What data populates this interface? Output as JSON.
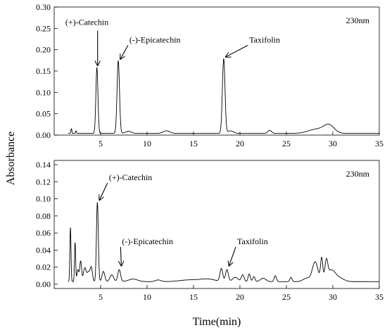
{
  "chart_data": {
    "type": "line",
    "xlabel": "Time(min)",
    "ylabel": "Absorbance",
    "panels": [
      {
        "wavelength_label": "230nm",
        "xlim": [
          0,
          35
        ],
        "ylim": [
          0,
          0.3
        ],
        "x_ticks": [
          5,
          10,
          15,
          20,
          25,
          30,
          35
        ],
        "y_ticks": [
          0.0,
          0.05,
          0.1,
          0.15,
          0.2,
          0.25,
          0.3
        ],
        "y_tick_labels": [
          "0.00",
          "0.05",
          "0.10",
          "0.15",
          "0.20",
          "0.25",
          "0.30"
        ],
        "baseline": 0.004,
        "peaks": [
          {
            "x": 1.85,
            "y": 0.011,
            "w": 0.05
          },
          {
            "x": 2.35,
            "y": 0.006,
            "w": 0.05
          },
          {
            "x": 4.6,
            "y": 0.154,
            "w": 0.11
          },
          {
            "x": 6.9,
            "y": 0.17,
            "w": 0.13
          },
          {
            "x": 8.0,
            "y": 0.005,
            "w": 0.3
          },
          {
            "x": 12.1,
            "y": 0.006,
            "w": 0.35
          },
          {
            "x": 18.25,
            "y": 0.175,
            "w": 0.14
          },
          {
            "x": 19.0,
            "y": 0.006,
            "w": 0.3
          },
          {
            "x": 23.2,
            "y": 0.007,
            "w": 0.2
          },
          {
            "x": 28.3,
            "y": 0.01,
            "w": 0.9
          },
          {
            "x": 29.6,
            "y": 0.018,
            "w": 0.55
          }
        ],
        "annotations": [
          {
            "text": "(+)-Catechin",
            "text_x": 1.2,
            "text_y": 0.258,
            "peak_x": 4.6,
            "peak_y": 0.16,
            "arrow": "down"
          },
          {
            "text": "(-)-Epicatechin",
            "text_x": 8.1,
            "text_y": 0.217,
            "peak_x": 6.9,
            "peak_y": 0.175,
            "arrow": "diag"
          },
          {
            "text": "Taxifolin",
            "text_x": 21.0,
            "text_y": 0.217,
            "peak_x": 18.25,
            "peak_y": 0.18,
            "arrow": "diag"
          }
        ]
      },
      {
        "wavelength_label": "230nm",
        "xlim": [
          0,
          35
        ],
        "ylim": [
          -0.005,
          0.145
        ],
        "x_ticks": [
          5,
          10,
          15,
          20,
          25,
          30,
          35
        ],
        "y_ticks": [
          0.0,
          0.02,
          0.04,
          0.06,
          0.08,
          0.1,
          0.12,
          0.14
        ],
        "y_tick_labels": [
          "0.00",
          "0.02",
          "0.04",
          "0.06",
          "0.08",
          "0.10",
          "0.12",
          "0.14"
        ],
        "baseline": 0.003,
        "peaks": [
          {
            "x": 1.75,
            "y": 0.064,
            "w": 0.06
          },
          {
            "x": 2.25,
            "y": 0.046,
            "w": 0.06
          },
          {
            "x": 2.55,
            "y": 0.014,
            "w": 0.1
          },
          {
            "x": 2.85,
            "y": 0.024,
            "w": 0.1
          },
          {
            "x": 3.3,
            "y": 0.016,
            "w": 0.15
          },
          {
            "x": 3.7,
            "y": 0.011,
            "w": 0.15
          },
          {
            "x": 4.0,
            "y": 0.016,
            "w": 0.12
          },
          {
            "x": 4.65,
            "y": 0.093,
            "w": 0.1
          },
          {
            "x": 5.3,
            "y": 0.012,
            "w": 0.15
          },
          {
            "x": 6.2,
            "y": 0.008,
            "w": 0.2
          },
          {
            "x": 7.0,
            "y": 0.014,
            "w": 0.15
          },
          {
            "x": 8.5,
            "y": 0.003,
            "w": 0.5
          },
          {
            "x": 11.2,
            "y": 0.002,
            "w": 0.3
          },
          {
            "x": 14.5,
            "y": 0.002,
            "w": 1.0
          },
          {
            "x": 16.5,
            "y": 0.003,
            "w": 0.8
          },
          {
            "x": 18.0,
            "y": 0.015,
            "w": 0.15
          },
          {
            "x": 18.6,
            "y": 0.014,
            "w": 0.15
          },
          {
            "x": 19.5,
            "y": 0.005,
            "w": 0.3
          },
          {
            "x": 20.3,
            "y": 0.008,
            "w": 0.15
          },
          {
            "x": 21.0,
            "y": 0.009,
            "w": 0.12
          },
          {
            "x": 21.5,
            "y": 0.006,
            "w": 0.12
          },
          {
            "x": 22.5,
            "y": 0.004,
            "w": 0.3
          },
          {
            "x": 23.8,
            "y": 0.007,
            "w": 0.12
          },
          {
            "x": 25.5,
            "y": 0.005,
            "w": 0.12
          },
          {
            "x": 27.2,
            "y": 0.004,
            "w": 0.4
          },
          {
            "x": 28.1,
            "y": 0.023,
            "w": 0.3
          },
          {
            "x": 28.8,
            "y": 0.026,
            "w": 0.12
          },
          {
            "x": 29.3,
            "y": 0.02,
            "w": 0.15
          },
          {
            "x": 29.8,
            "y": 0.013,
            "w": 0.45
          },
          {
            "x": 30.7,
            "y": 0.004,
            "w": 0.5
          }
        ],
        "annotations": [
          {
            "text": "(+)-Catechin",
            "text_x": 5.9,
            "text_y": 0.122,
            "peak_x": 4.65,
            "peak_y": 0.097,
            "arrow": "diag"
          },
          {
            "text": "(-)-Epicatechin",
            "text_x": 7.3,
            "text_y": 0.047,
            "peak_x": 7.0,
            "peak_y": 0.02,
            "arrow": "diag"
          },
          {
            "text": "Taxifolin",
            "text_x": 19.7,
            "text_y": 0.047,
            "peak_x": 18.6,
            "peak_y": 0.02,
            "arrow": "diag"
          }
        ]
      }
    ]
  }
}
